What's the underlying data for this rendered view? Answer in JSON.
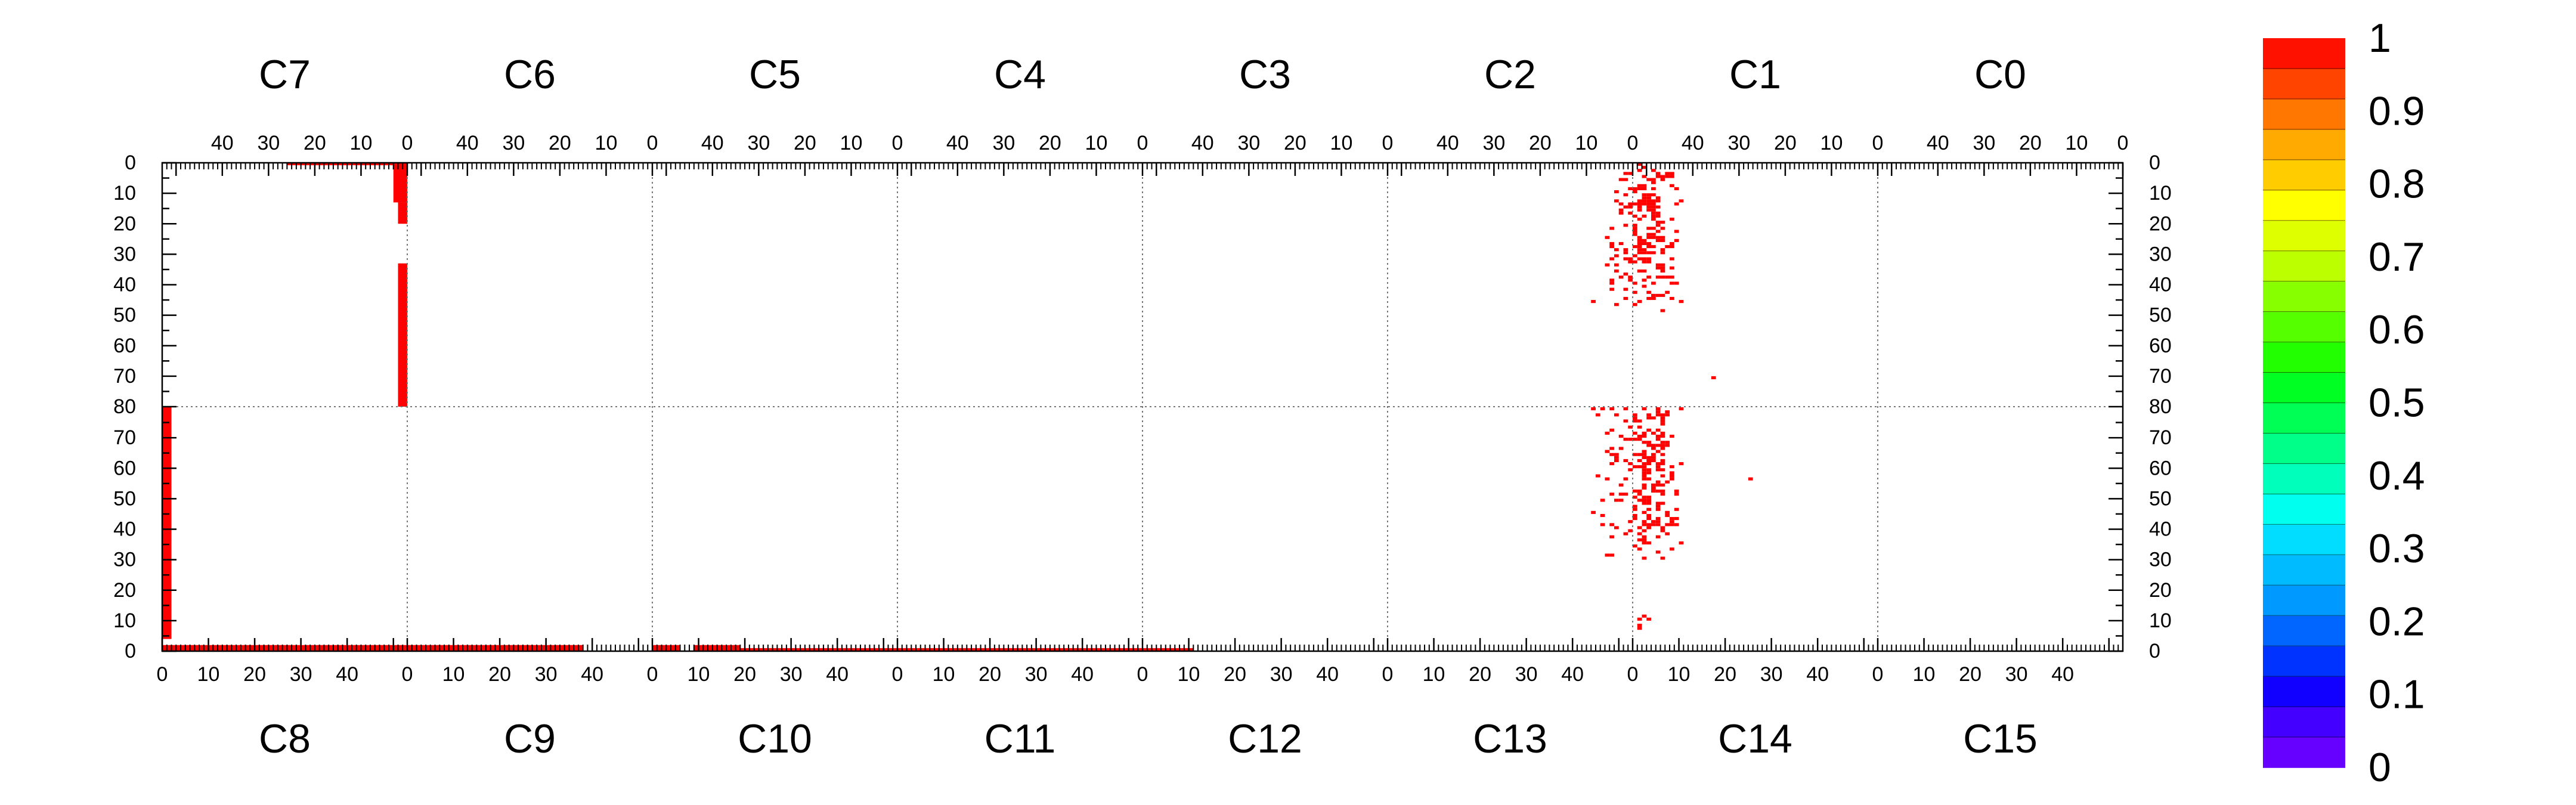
{
  "chart_data": {
    "type": "heatmap",
    "title": "",
    "xlabel": "",
    "ylabel": "",
    "grid": true,
    "top_panel_labels": [
      "C7",
      "C6",
      "C5",
      "C4",
      "C3",
      "C2",
      "C1",
      "C0"
    ],
    "bottom_panel_labels": [
      "C8",
      "C9",
      "C10",
      "C11",
      "C12",
      "C13",
      "C14",
      "C15"
    ],
    "top_x_tick_labels": [
      "40",
      "30",
      "20",
      "10",
      "0"
    ],
    "bottom_x_tick_labels": [
      "0",
      "10",
      "20",
      "30",
      "40"
    ],
    "y_tick_labels_upper": [
      "0",
      "10",
      "20",
      "30",
      "40",
      "50",
      "60",
      "70"
    ],
    "y_tick_labels_middle": "80",
    "y_tick_labels_lower": [
      "70",
      "60",
      "50",
      "40",
      "30",
      "20",
      "10",
      "0"
    ],
    "panel_x_range": [
      0,
      53
    ],
    "y_range": [
      0,
      80
    ],
    "colorbar": {
      "range": [
        0,
        1
      ],
      "tick_labels": [
        "0",
        "0.1",
        "0.2",
        "0.3",
        "0.4",
        "0.5",
        "0.6",
        "0.7",
        "0.8",
        "0.9",
        "1"
      ],
      "ticks": [
        0,
        0.1,
        0.2,
        0.3,
        0.4,
        0.5,
        0.6,
        0.7,
        0.8,
        0.9,
        1.0
      ],
      "colors": [
        "#6600ff",
        "#4400ff",
        "#1100ff",
        "#0033ff",
        "#0066ff",
        "#0099ff",
        "#00bbff",
        "#00ddff",
        "#00ffee",
        "#00ffbb",
        "#00ff88",
        "#00ff55",
        "#00ff22",
        "#22ff00",
        "#55ff00",
        "#88ff00",
        "#bbff00",
        "#ddff00",
        "#ffff00",
        "#ffcc00",
        "#ffaa00",
        "#ff7700",
        "#ff4400",
        "#ff1100"
      ]
    },
    "series": [
      {
        "name": "",
        "cell_value": 1,
        "color": "#ff0000",
        "rects": [
          {
            "panel": "C7",
            "x": [
              0,
              3
            ],
            "y_top": [
              0,
              13
            ]
          },
          {
            "panel": "C7",
            "x": [
              0,
              26
            ],
            "y_top": [
              0,
              0.8
            ]
          },
          {
            "panel": "C7",
            "x": [
              0,
              2
            ],
            "y_top": [
              13,
              20
            ]
          },
          {
            "panel": "C7",
            "x": [
              0,
              2
            ],
            "y_top": [
              33,
              80
            ]
          },
          {
            "panel": "C8",
            "x": [
              0,
              2
            ],
            "y_bottom": [
              4,
              80
            ]
          },
          {
            "panel": "C8",
            "x": [
              0,
              53
            ],
            "y_bottom": [
              0,
              2
            ]
          },
          {
            "panel": "C9",
            "x": [
              0,
              38
            ],
            "y_bottom": [
              0,
              2
            ]
          },
          {
            "panel": "C10",
            "x": [
              0,
              6
            ],
            "y_bottom": [
              0,
              2
            ]
          },
          {
            "panel": "C10",
            "x": [
              9,
              19
            ],
            "y_bottom": [
              0,
              2
            ]
          },
          {
            "panel": "C10",
            "x": [
              19,
              53
            ],
            "y_bottom": [
              0,
              1
            ]
          },
          {
            "panel": "C11",
            "x": [
              0,
              53
            ],
            "y_bottom": [
              0,
              1
            ]
          },
          {
            "panel": "C12",
            "x": [
              0,
              11
            ],
            "y_bottom": [
              0,
              1
            ]
          }
        ],
        "scatter_region": {
          "top_panel": "C1",
          "bottom_panel": "C14",
          "x": [
            -10,
            12
          ],
          "y_top": [
            14,
            80
          ],
          "y_bottom": [
            8,
            80
          ]
        }
      }
    ]
  }
}
